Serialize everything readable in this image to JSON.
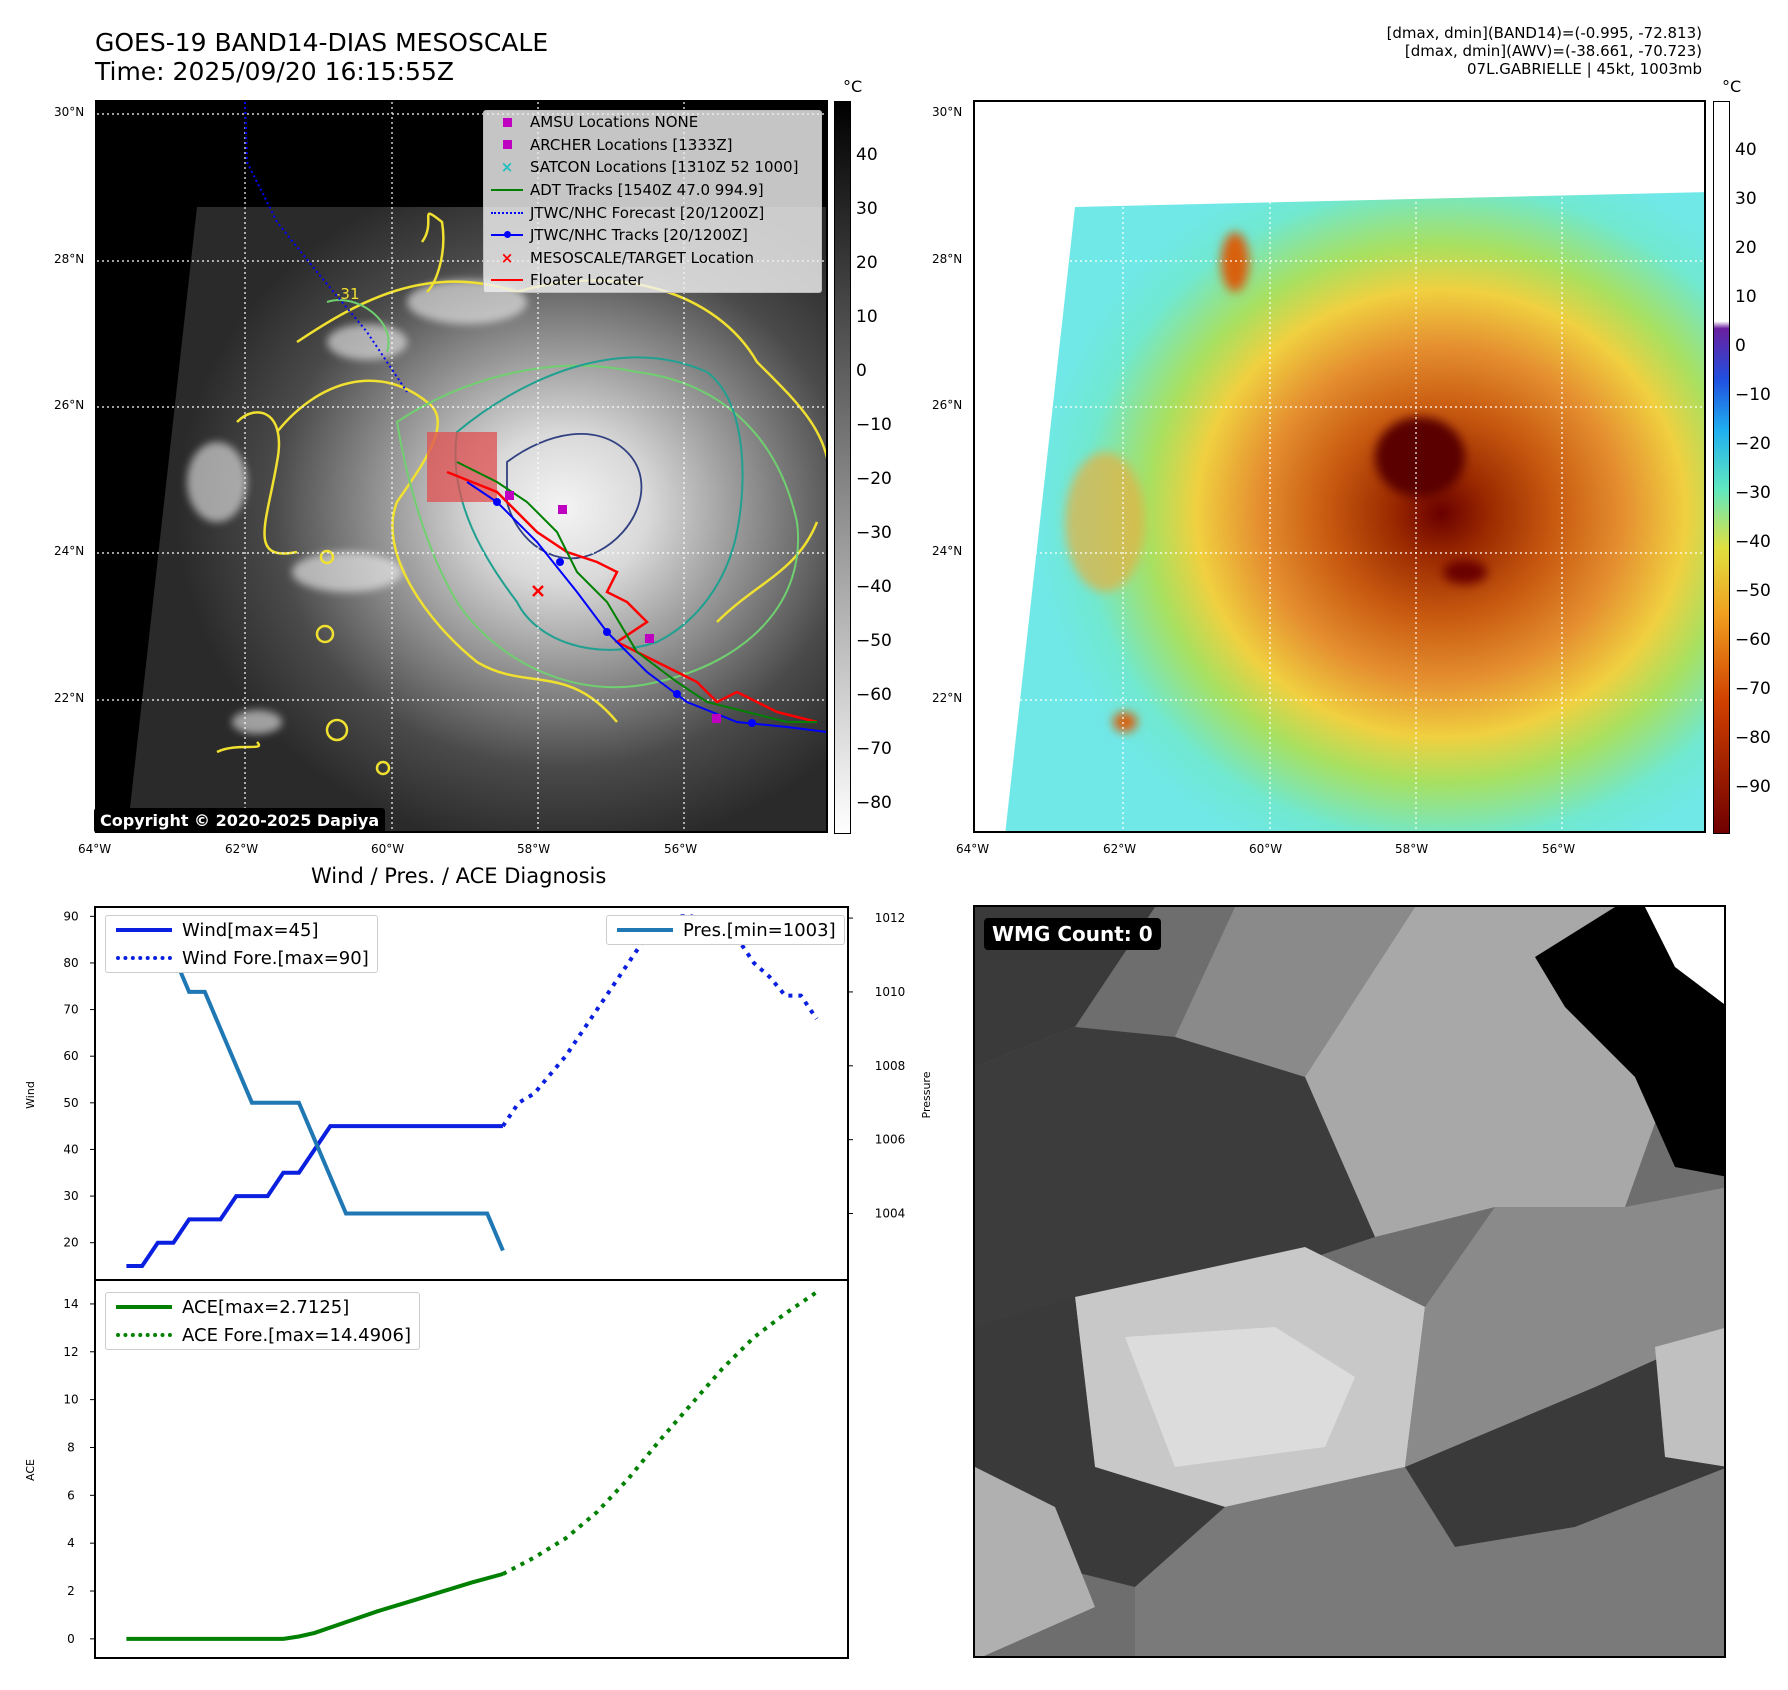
{
  "header": {
    "title_line1": "GOES-19 BAND14-DIAS MESOSCALE",
    "title_line2": "Time: 2025/09/20 16:15:55Z",
    "info_line1": "[dmax, dmin](BAND14)=(-0.995, -72.813)",
    "info_line2": "[dmax, dmin](AWV)=(-38.661, -70.723)",
    "info_line3": "07L.GABRIELLE | 45kt, 1003mb"
  },
  "map_left": {
    "unit": "°C",
    "lat_labels": [
      "30°N",
      "28°N",
      "26°N",
      "24°N",
      "22°N"
    ],
    "lon_labels": [
      "64°W",
      "62°W",
      "60°W",
      "58°W",
      "56°W"
    ],
    "colorbar_ticks": [
      "40",
      "30",
      "20",
      "10",
      "0",
      "−10",
      "−20",
      "−30",
      "−40",
      "−50",
      "−60",
      "−70",
      "−80"
    ],
    "contour_label": "-31",
    "copyright": "Copyright © 2020-2025 Dapiya",
    "legend": [
      {
        "label": "AMSU Locations NONE",
        "color": "#c000c0",
        "kind": "square"
      },
      {
        "label": "ARCHER Locations [1333Z]",
        "color": "#c000c0",
        "kind": "square"
      },
      {
        "label": "SATCON Locations [1310Z 52 1000]",
        "color": "#20c0c0",
        "kind": "x"
      },
      {
        "label": "ADT Tracks [1540Z 47.0 994.9]",
        "color": "#008000",
        "kind": "line"
      },
      {
        "label": "JTWC/NHC Forecast [20/1200Z]",
        "color": "#0000ff",
        "kind": "dotted"
      },
      {
        "label": "JTWC/NHC Tracks [20/1200Z]",
        "color": "#0000ff",
        "kind": "dotline"
      },
      {
        "label": "MESOSCALE/TARGET Location",
        "color": "#ff0000",
        "kind": "x"
      },
      {
        "label": "Floater Locater",
        "color": "#ff0000",
        "kind": "line"
      }
    ]
  },
  "map_right": {
    "unit": "°C",
    "lat_labels": [
      "30°N",
      "28°N",
      "26°N",
      "24°N",
      "22°N"
    ],
    "lon_labels": [
      "64°W",
      "62°W",
      "60°W",
      "58°W",
      "56°W"
    ],
    "colorbar_ticks": [
      "40",
      "30",
      "20",
      "10",
      "0",
      "−10",
      "−20",
      "−30",
      "−40",
      "−50",
      "−60",
      "−70",
      "−80",
      "−90"
    ]
  },
  "wmg": {
    "label": "WMG Count: 0"
  },
  "chart_data": [
    {
      "type": "line",
      "title": "Wind / Pres. / ACE Diagnosis",
      "xlabel": "",
      "ylabel": "Wind",
      "ylabel_right": "Pressure",
      "ylim": [
        12,
        92
      ],
      "ylim_right": [
        1002.2,
        1012.3
      ],
      "yticks": [
        20,
        30,
        40,
        50,
        60,
        70,
        80,
        90
      ],
      "yticks_right": [
        1004,
        1006,
        1008,
        1010,
        1012
      ],
      "xlim": [
        -1,
        23
      ],
      "series": [
        {
          "name": "Wind[max=45]",
          "axis": "left",
          "color": "#0a1fe0",
          "style": "solid",
          "x": [
            0,
            0.5,
            1,
            1.5,
            2,
            2.5,
            3,
            3.5,
            4,
            4.5,
            5,
            5.5,
            6,
            6.5,
            7,
            7.5,
            8,
            8.5,
            9,
            9.5,
            10,
            10.5,
            11,
            11.5,
            12
          ],
          "values": [
            15,
            15,
            20,
            20,
            25,
            25,
            25,
            30,
            30,
            30,
            35,
            35,
            40,
            45,
            45,
            45,
            45,
            45,
            45,
            45,
            45,
            45,
            45,
            45,
            45
          ]
        },
        {
          "name": "Wind Fore.[max=90]",
          "axis": "left",
          "color": "#0a1fe0",
          "style": "dotted",
          "x": [
            12,
            12.5,
            13,
            13.5,
            14,
            14.5,
            15,
            15.5,
            16,
            16.5,
            17,
            17.5,
            18,
            18.5,
            19,
            19.5,
            20,
            20.5,
            21,
            21.5,
            22
          ],
          "values": [
            45,
            50,
            52,
            56,
            60,
            65,
            70,
            75,
            80,
            85,
            88,
            90,
            90,
            89,
            87,
            85,
            80,
            77,
            73,
            73,
            68
          ]
        },
        {
          "name": "Pres.[min=1003]",
          "axis": "right",
          "color": "#1f77b4",
          "style": "solid",
          "x": [
            0,
            0.5,
            1,
            1.5,
            2,
            2.5,
            3,
            3.5,
            4,
            4.5,
            5,
            5.5,
            6,
            6.5,
            7,
            7.5,
            8,
            8.5,
            9,
            9.5,
            10,
            10.5,
            11,
            11.5,
            12
          ],
          "values": [
            1012,
            1012,
            1011,
            1011,
            1010,
            1010,
            1009,
            1008,
            1007,
            1007,
            1007,
            1007,
            1006,
            1005,
            1004,
            1004,
            1004,
            1004,
            1004,
            1004,
            1004,
            1004,
            1004,
            1004,
            1003
          ]
        }
      ]
    },
    {
      "type": "line",
      "title": "",
      "xlabel": "",
      "ylabel": "ACE",
      "ylim": [
        -0.8,
        15
      ],
      "yticks": [
        0,
        2,
        4,
        6,
        8,
        10,
        12,
        14
      ],
      "xlim": [
        -1,
        23
      ],
      "series": [
        {
          "name": "ACE[max=2.7125]",
          "color": "#008000",
          "style": "solid",
          "x": [
            0,
            1,
            2,
            3,
            4,
            5,
            5.5,
            6,
            7,
            8,
            9,
            10,
            11,
            12
          ],
          "values": [
            0,
            0,
            0,
            0,
            0,
            0,
            0.1,
            0.25,
            0.7,
            1.15,
            1.55,
            1.95,
            2.35,
            2.7125
          ]
        },
        {
          "name": "ACE Fore.[max=14.4906]",
          "color": "#008000",
          "style": "dotted",
          "x": [
            12,
            13,
            14,
            15,
            16,
            17,
            18,
            19,
            20,
            21,
            22
          ],
          "values": [
            2.7125,
            3.4,
            4.2,
            5.3,
            6.7,
            8.3,
            9.8,
            11.3,
            12.6,
            13.6,
            14.4906
          ]
        }
      ]
    }
  ]
}
